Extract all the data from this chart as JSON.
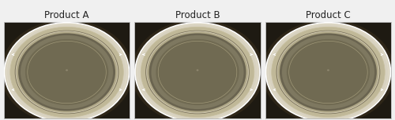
{
  "titles": [
    "Product A",
    "Product B",
    "Product C"
  ],
  "background_color": "#f0f0f0",
  "panel_bg_dark": "#2a2318",
  "title_fontsize": 8.5,
  "figure_width": 5.0,
  "figure_height": 1.53,
  "dpi": 100,
  "panel_border": "#bbbbbb",
  "dish_colors": {
    "outer_bg": "#1e1a12",
    "rim_bright": "#e8e4d8",
    "rim_mid": "#c8c0a8",
    "rim_inner": "#b0a888",
    "inner_wall": "#909070",
    "agar_outer": "#8a8468",
    "agar_inner": "#7a7460",
    "center_bg": "#6e6850",
    "center_dot": "#888070"
  }
}
